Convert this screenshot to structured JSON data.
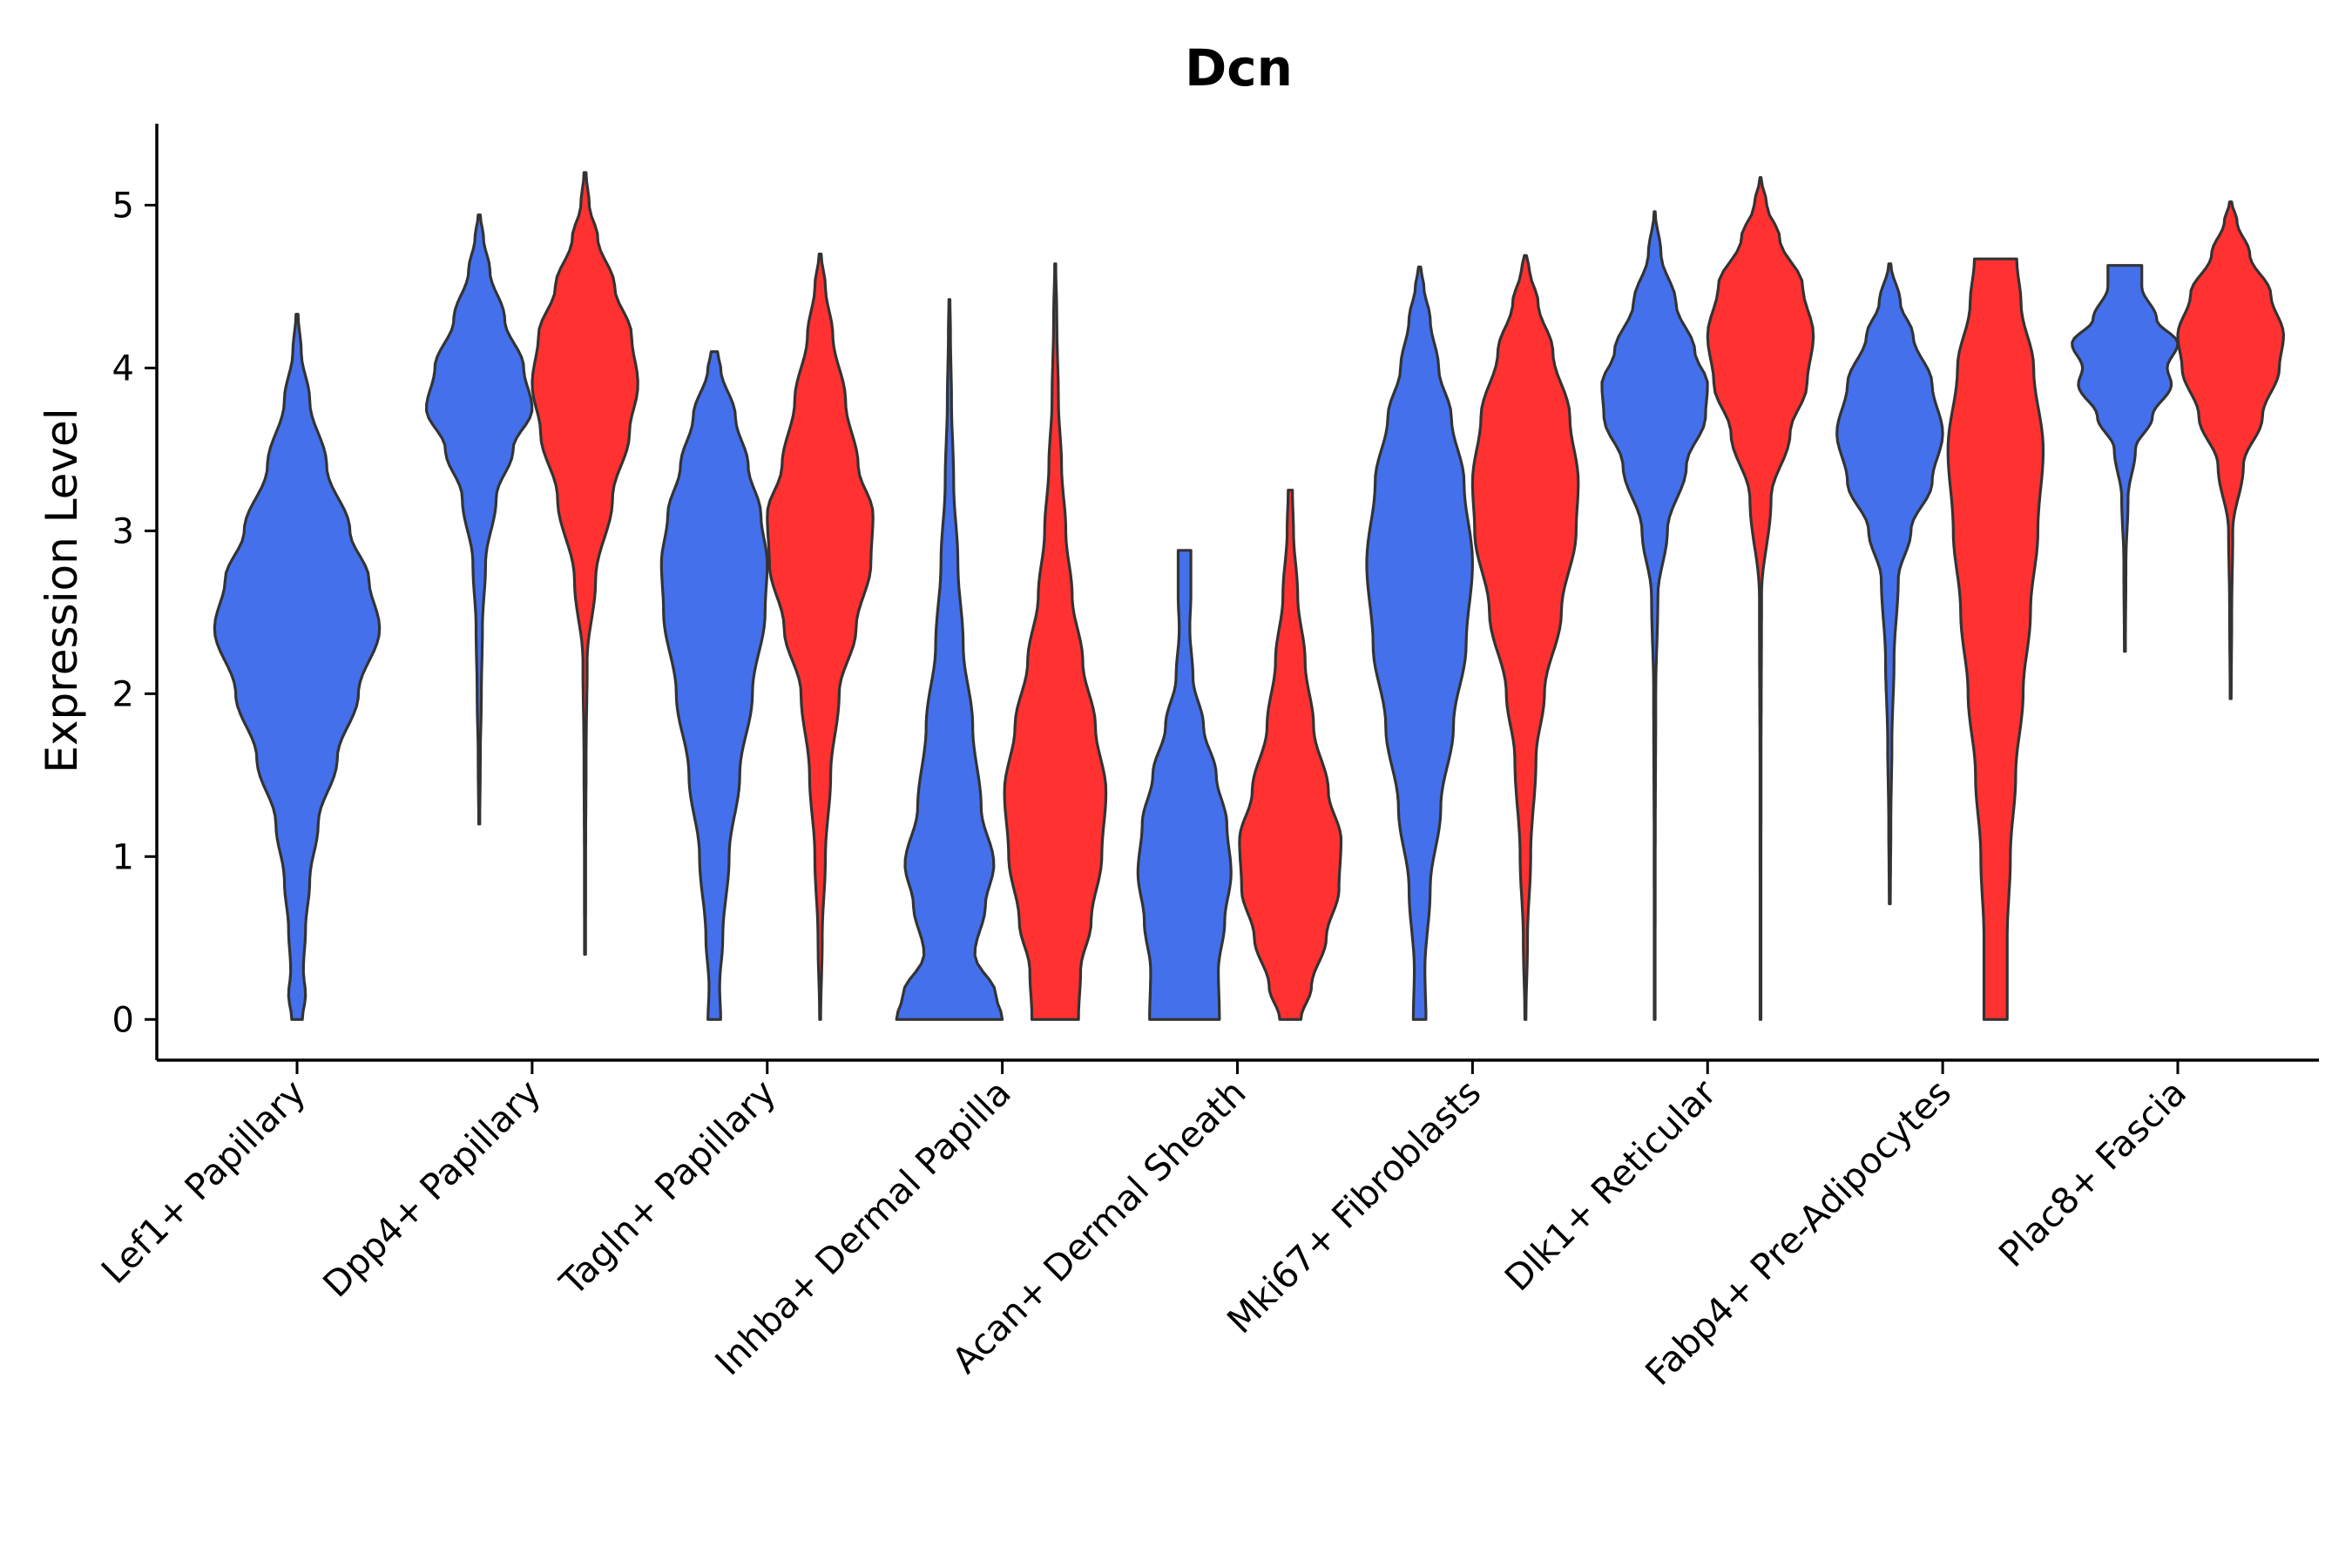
{
  "chart_data": {
    "type": "violin",
    "title": "Dcn",
    "xlabel": "",
    "ylabel": "Expression Level",
    "ylim": [
      -0.25,
      5.5
    ],
    "yticks": [
      0,
      1,
      2,
      3,
      4,
      5
    ],
    "categories": [
      "Lef1+ Papillary",
      "Dpp4+ Papillary",
      "Tagln+ Papillary",
      "Inhba+ Dermal Papilla",
      "Acan+ Dermal Sheath",
      "Mki67+ Fibroblasts",
      "Dlk1+ Reticular",
      "Fabp4+ Pre-Adipocytes",
      "Plac8+ Fascia"
    ],
    "groups": [
      {
        "name": "group-blue",
        "color": "#4470ec"
      },
      {
        "name": "group-red",
        "color": "#ff3131"
      }
    ],
    "violins": [
      {
        "category": "Lef1+ Papillary",
        "group": "group-blue",
        "min": 0,
        "max": 4.33,
        "profile": [
          [
            0,
            0.05
          ],
          [
            0.15,
            0.08
          ],
          [
            0.3,
            0.06
          ],
          [
            0.55,
            0.08
          ],
          [
            0.85,
            0.12
          ],
          [
            1.2,
            0.2
          ],
          [
            1.6,
            0.38
          ],
          [
            2.0,
            0.58
          ],
          [
            2.4,
            0.78
          ],
          [
            2.7,
            0.68
          ],
          [
            3.0,
            0.5
          ],
          [
            3.4,
            0.28
          ],
          [
            3.8,
            0.12
          ],
          [
            4.1,
            0.04
          ],
          [
            4.33,
            0.01
          ]
        ]
      },
      {
        "category": "Dpp4+ Papillary",
        "group": "group-blue",
        "min": 1.2,
        "max": 4.94,
        "profile": [
          [
            1.2,
            0.005
          ],
          [
            1.6,
            0.01
          ],
          [
            2.0,
            0.02
          ],
          [
            2.4,
            0.03
          ],
          [
            2.8,
            0.06
          ],
          [
            3.2,
            0.16
          ],
          [
            3.5,
            0.32
          ],
          [
            3.75,
            0.5
          ],
          [
            4.0,
            0.42
          ],
          [
            4.3,
            0.24
          ],
          [
            4.6,
            0.1
          ],
          [
            4.8,
            0.04
          ],
          [
            4.94,
            0.01
          ]
        ]
      },
      {
        "category": "Dpp4+ Papillary",
        "group": "group-red",
        "min": 0.4,
        "max": 5.2,
        "profile": [
          [
            0.4,
            0.005
          ],
          [
            1.0,
            0.006
          ],
          [
            1.6,
            0.01
          ],
          [
            2.2,
            0.02
          ],
          [
            2.7,
            0.1
          ],
          [
            3.2,
            0.26
          ],
          [
            3.6,
            0.42
          ],
          [
            3.9,
            0.5
          ],
          [
            4.2,
            0.44
          ],
          [
            4.5,
            0.28
          ],
          [
            4.8,
            0.12
          ],
          [
            5.0,
            0.04
          ],
          [
            5.2,
            0.01
          ]
        ]
      },
      {
        "category": "Tagln+ Papillary",
        "group": "group-blue",
        "min": 0,
        "max": 4.1,
        "profile": [
          [
            0,
            0.06
          ],
          [
            0.2,
            0.05
          ],
          [
            0.5,
            0.08
          ],
          [
            1.0,
            0.14
          ],
          [
            1.5,
            0.24
          ],
          [
            2.0,
            0.36
          ],
          [
            2.5,
            0.48
          ],
          [
            2.8,
            0.5
          ],
          [
            3.1,
            0.44
          ],
          [
            3.4,
            0.32
          ],
          [
            3.7,
            0.2
          ],
          [
            4.0,
            0.06
          ],
          [
            4.1,
            0.03
          ]
        ]
      },
      {
        "category": "Tagln+ Papillary",
        "group": "group-red",
        "min": 0,
        "max": 4.7,
        "profile": [
          [
            0,
            0.005
          ],
          [
            0.5,
            0.02
          ],
          [
            1.0,
            0.05
          ],
          [
            1.5,
            0.1
          ],
          [
            2.0,
            0.18
          ],
          [
            2.4,
            0.34
          ],
          [
            2.8,
            0.48
          ],
          [
            3.1,
            0.5
          ],
          [
            3.4,
            0.36
          ],
          [
            3.8,
            0.24
          ],
          [
            4.2,
            0.12
          ],
          [
            4.5,
            0.05
          ],
          [
            4.7,
            0.01
          ]
        ]
      },
      {
        "category": "Inhba+ Dermal Papilla",
        "group": "group-blue",
        "min": 0,
        "max": 4.42,
        "profile": [
          [
            0,
            0.5
          ],
          [
            0.15,
            0.44
          ],
          [
            0.4,
            0.24
          ],
          [
            0.7,
            0.34
          ],
          [
            0.95,
            0.42
          ],
          [
            1.3,
            0.3
          ],
          [
            1.8,
            0.22
          ],
          [
            2.3,
            0.13
          ],
          [
            2.8,
            0.08
          ],
          [
            3.3,
            0.04
          ],
          [
            3.8,
            0.02
          ],
          [
            4.2,
            0.01
          ],
          [
            4.42,
            0.005
          ]
        ]
      },
      {
        "category": "Inhba+ Dermal Papilla",
        "group": "group-red",
        "min": 0,
        "max": 4.64,
        "profile": [
          [
            0,
            0.22
          ],
          [
            0.3,
            0.24
          ],
          [
            0.6,
            0.34
          ],
          [
            1.0,
            0.44
          ],
          [
            1.4,
            0.48
          ],
          [
            1.8,
            0.38
          ],
          [
            2.2,
            0.26
          ],
          [
            2.6,
            0.16
          ],
          [
            3.0,
            0.1
          ],
          [
            3.4,
            0.06
          ],
          [
            3.8,
            0.03
          ],
          [
            4.3,
            0.015
          ],
          [
            4.64,
            0.005
          ]
        ]
      },
      {
        "category": "Acan+ Dermal Sheath",
        "group": "group-blue",
        "min": 0,
        "max": 2.88,
        "profile": [
          [
            0,
            0.33
          ],
          [
            0.3,
            0.32
          ],
          [
            0.6,
            0.38
          ],
          [
            0.9,
            0.44
          ],
          [
            1.2,
            0.4
          ],
          [
            1.5,
            0.3
          ],
          [
            1.8,
            0.18
          ],
          [
            2.1,
            0.08
          ],
          [
            2.4,
            0.05
          ],
          [
            2.6,
            0.06
          ],
          [
            2.88,
            0.06
          ]
        ]
      },
      {
        "category": "Acan+ Dermal Sheath",
        "group": "group-red",
        "min": 0,
        "max": 3.25,
        "profile": [
          [
            0,
            0.1
          ],
          [
            0.2,
            0.2
          ],
          [
            0.5,
            0.34
          ],
          [
            0.8,
            0.46
          ],
          [
            1.1,
            0.48
          ],
          [
            1.4,
            0.36
          ],
          [
            1.8,
            0.22
          ],
          [
            2.2,
            0.14
          ],
          [
            2.6,
            0.07
          ],
          [
            3.0,
            0.03
          ],
          [
            3.25,
            0.02
          ]
        ]
      },
      {
        "category": "Mki67+ Fibroblasts",
        "group": "group-blue",
        "min": 0,
        "max": 4.62,
        "profile": [
          [
            0,
            0.06
          ],
          [
            0.3,
            0.05
          ],
          [
            0.8,
            0.1
          ],
          [
            1.3,
            0.2
          ],
          [
            1.8,
            0.32
          ],
          [
            2.3,
            0.44
          ],
          [
            2.8,
            0.5
          ],
          [
            3.3,
            0.42
          ],
          [
            3.7,
            0.3
          ],
          [
            4.0,
            0.18
          ],
          [
            4.3,
            0.1
          ],
          [
            4.5,
            0.04
          ],
          [
            4.62,
            0.01
          ]
        ]
      },
      {
        "category": "Mki67+ Fibroblasts",
        "group": "group-red",
        "min": 0,
        "max": 4.69,
        "profile": [
          [
            0,
            0.005
          ],
          [
            0.5,
            0.02
          ],
          [
            1.0,
            0.05
          ],
          [
            1.6,
            0.1
          ],
          [
            2.0,
            0.18
          ],
          [
            2.5,
            0.34
          ],
          [
            3.0,
            0.48
          ],
          [
            3.3,
            0.5
          ],
          [
            3.7,
            0.42
          ],
          [
            4.1,
            0.26
          ],
          [
            4.4,
            0.12
          ],
          [
            4.6,
            0.04
          ],
          [
            4.69,
            0.01
          ]
        ]
      },
      {
        "category": "Dlk1+ Reticular",
        "group": "group-blue",
        "min": 0,
        "max": 4.96,
        "profile": [
          [
            0,
            0.003
          ],
          [
            1.0,
            0.005
          ],
          [
            2.0,
            0.01
          ],
          [
            2.6,
            0.03
          ],
          [
            3.0,
            0.12
          ],
          [
            3.4,
            0.3
          ],
          [
            3.7,
            0.48
          ],
          [
            3.9,
            0.5
          ],
          [
            4.1,
            0.38
          ],
          [
            4.4,
            0.2
          ],
          [
            4.7,
            0.06
          ],
          [
            4.96,
            0.005
          ]
        ]
      },
      {
        "category": "Dlk1+ Reticular",
        "group": "group-red",
        "min": 0,
        "max": 5.17,
        "profile": [
          [
            0,
            0.003
          ],
          [
            1.5,
            0.005
          ],
          [
            2.6,
            0.01
          ],
          [
            3.2,
            0.1
          ],
          [
            3.6,
            0.28
          ],
          [
            3.9,
            0.44
          ],
          [
            4.2,
            0.5
          ],
          [
            4.5,
            0.4
          ],
          [
            4.8,
            0.18
          ],
          [
            5.0,
            0.06
          ],
          [
            5.17,
            0.005
          ]
        ]
      },
      {
        "category": "Fabp4+ Pre-Adipocytes",
        "group": "group-blue",
        "min": 0.71,
        "max": 4.64,
        "profile": [
          [
            0.71,
            0.005
          ],
          [
            1.2,
            0.01
          ],
          [
            1.7,
            0.02
          ],
          [
            2.2,
            0.04
          ],
          [
            2.7,
            0.08
          ],
          [
            3.0,
            0.2
          ],
          [
            3.3,
            0.4
          ],
          [
            3.6,
            0.5
          ],
          [
            3.9,
            0.4
          ],
          [
            4.2,
            0.22
          ],
          [
            4.4,
            0.1
          ],
          [
            4.64,
            0.01
          ]
        ]
      },
      {
        "category": "Fabp4+ Pre-Adipocytes",
        "group": "group-red",
        "min": 0,
        "max": 4.67,
        "profile": [
          [
            0,
            0.11
          ],
          [
            0.5,
            0.11
          ],
          [
            1.0,
            0.14
          ],
          [
            1.5,
            0.19
          ],
          [
            2.0,
            0.26
          ],
          [
            2.5,
            0.33
          ],
          [
            3.0,
            0.4
          ],
          [
            3.5,
            0.45
          ],
          [
            4.0,
            0.36
          ],
          [
            4.4,
            0.24
          ],
          [
            4.67,
            0.2
          ]
        ]
      },
      {
        "category": "Plac8+ Fascia",
        "group": "group-blue",
        "min": 2.26,
        "max": 4.63,
        "profile": [
          [
            2.26,
            0.005
          ],
          [
            2.8,
            0.01
          ],
          [
            3.2,
            0.03
          ],
          [
            3.5,
            0.1
          ],
          [
            3.7,
            0.26
          ],
          [
            3.9,
            0.44
          ],
          [
            4.0,
            0.4
          ],
          [
            4.15,
            0.5
          ],
          [
            4.3,
            0.3
          ],
          [
            4.5,
            0.16
          ],
          [
            4.63,
            0.16
          ]
        ]
      },
      {
        "category": "Plac8+ Fascia",
        "group": "group-red",
        "min": 1.97,
        "max": 5.02,
        "profile": [
          [
            1.97,
            0.005
          ],
          [
            2.5,
            0.01
          ],
          [
            3.0,
            0.02
          ],
          [
            3.4,
            0.12
          ],
          [
            3.7,
            0.3
          ],
          [
            4.0,
            0.46
          ],
          [
            4.2,
            0.5
          ],
          [
            4.45,
            0.38
          ],
          [
            4.7,
            0.18
          ],
          [
            4.9,
            0.06
          ],
          [
            5.02,
            0.01
          ]
        ]
      }
    ]
  }
}
